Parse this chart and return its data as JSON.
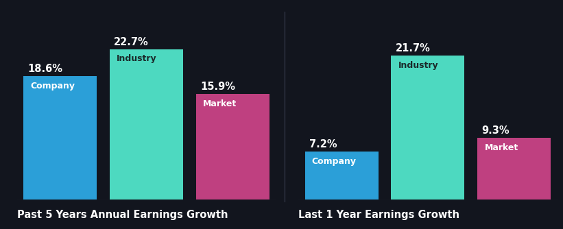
{
  "background_color": "#12151e",
  "groups": [
    {
      "title": "Past 5 Years Annual Earnings Growth",
      "bars": [
        {
          "label": "Company",
          "value": 18.6,
          "color": "#2b9fd8"
        },
        {
          "label": "Industry",
          "value": 22.7,
          "color": "#4dd9c0"
        },
        {
          "label": "Market",
          "value": 15.9,
          "color": "#bf4080"
        }
      ]
    },
    {
      "title": "Last 1 Year Earnings Growth",
      "bars": [
        {
          "label": "Company",
          "value": 7.2,
          "color": "#2b9fd8"
        },
        {
          "label": "Industry",
          "value": 21.7,
          "color": "#4dd9c0"
        },
        {
          "label": "Market",
          "value": 9.3,
          "color": "#bf4080"
        }
      ]
    }
  ],
  "value_fontsize": 10.5,
  "label_fontsize": 9.0,
  "title_fontsize": 10.5,
  "text_color": "#ffffff",
  "label_color_industry": "#1a2a2a",
  "ylim_max": 27,
  "separator_color": "#3a3f52"
}
